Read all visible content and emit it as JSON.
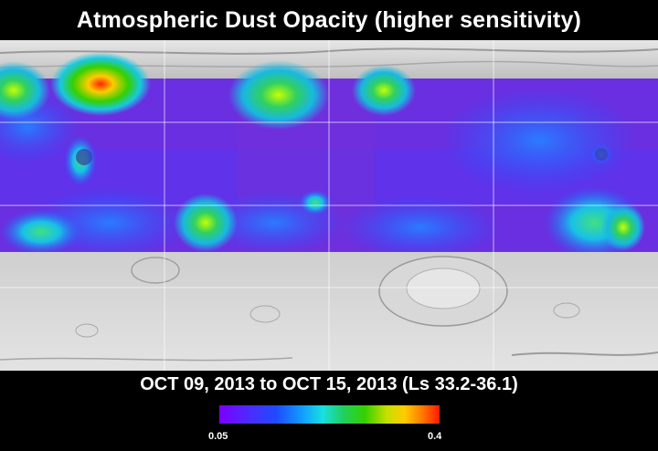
{
  "title": "Atmospheric Dust Opacity (higher sensitivity)",
  "date_range": "OCT 09, 2013 to OCT 15, 2013 (Ls 33.2-36.1)",
  "colorbar": {
    "min_label": "0.05",
    "max_label": "0.4",
    "colors": [
      "#7b00ff",
      "#2a3cff",
      "#11a0ff",
      "#18e0e0",
      "#34d000",
      "#c6df00",
      "#ffcc00",
      "#ff1a00"
    ]
  },
  "map": {
    "base_color": "#bdbdbd",
    "dust_background": "#6a2fe0"
  }
}
